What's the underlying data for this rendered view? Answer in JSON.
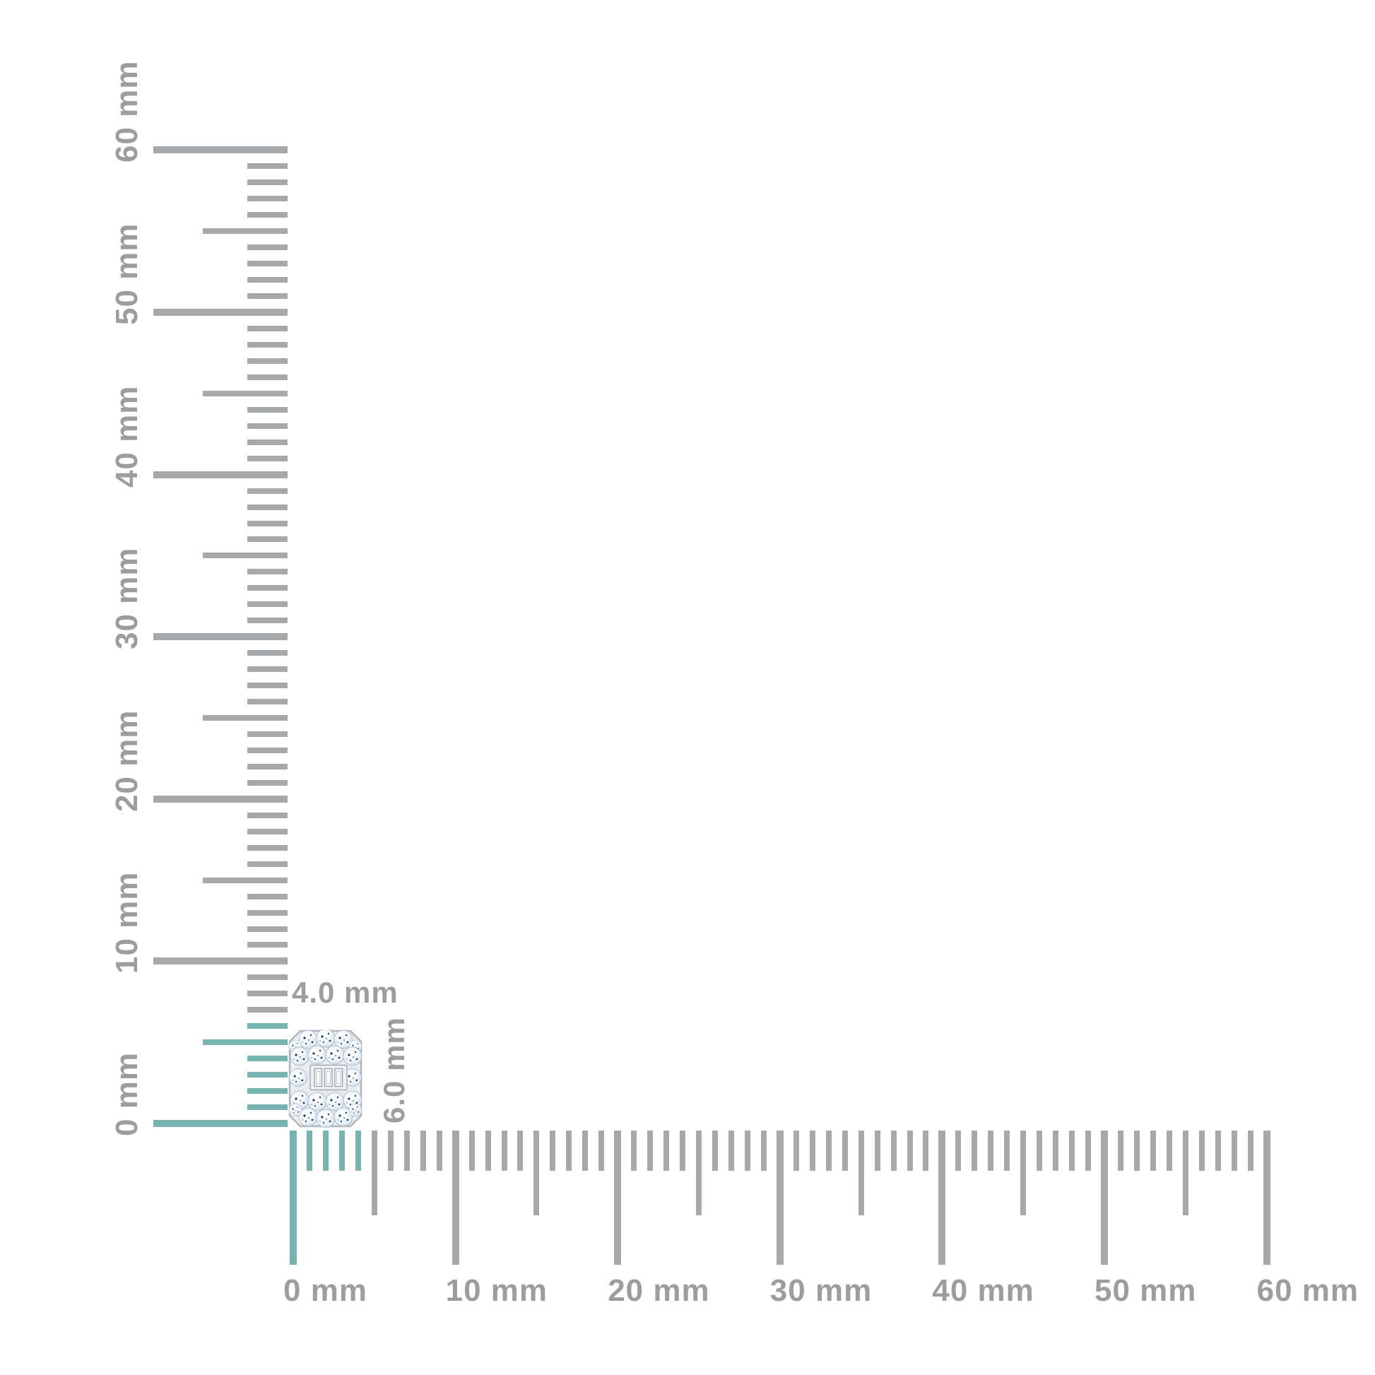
{
  "diagram": {
    "type": "measurement-diagram",
    "unit": "mm",
    "description": "diamond cluster stud shown against millimeter rulers"
  },
  "item": {
    "name": "emerald-shape-diamond-cluster-stud",
    "width_label": "4.0 mm",
    "height_label": "6.0 mm",
    "width_mm": 4.0,
    "height_mm": 6.0
  },
  "ruler_horizontal": {
    "min_mm": 0,
    "max_mm": 60,
    "minor_step_mm": 1,
    "medium_step_mm": 5,
    "major_step_mm": 10,
    "highlight_to_mm": 4,
    "labels": [
      "0 mm",
      "10 mm",
      "20 mm",
      "30 mm",
      "40 mm",
      "50 mm",
      "60 mm"
    ]
  },
  "ruler_vertical": {
    "min_mm": 0,
    "max_mm": 60,
    "minor_step_mm": 1,
    "medium_step_mm": 5,
    "major_step_mm": 10,
    "highlight_to_mm": 6,
    "labels": [
      "0 mm",
      "10 mm",
      "20 mm",
      "30 mm",
      "40 mm",
      "50 mm",
      "60 mm"
    ]
  },
  "colors": {
    "background": "#ffffff",
    "tick_gray": "#a6a8aa",
    "highlight_teal": "#76b4af",
    "label_gray": "#9b9d9f",
    "item_metal": "#e9ebed",
    "item_metal_edge": "#b3b6ba",
    "item_stone_light": "#eef4fa",
    "item_stone_shade": "#c3d2e2",
    "item_speckle": "#223852"
  }
}
